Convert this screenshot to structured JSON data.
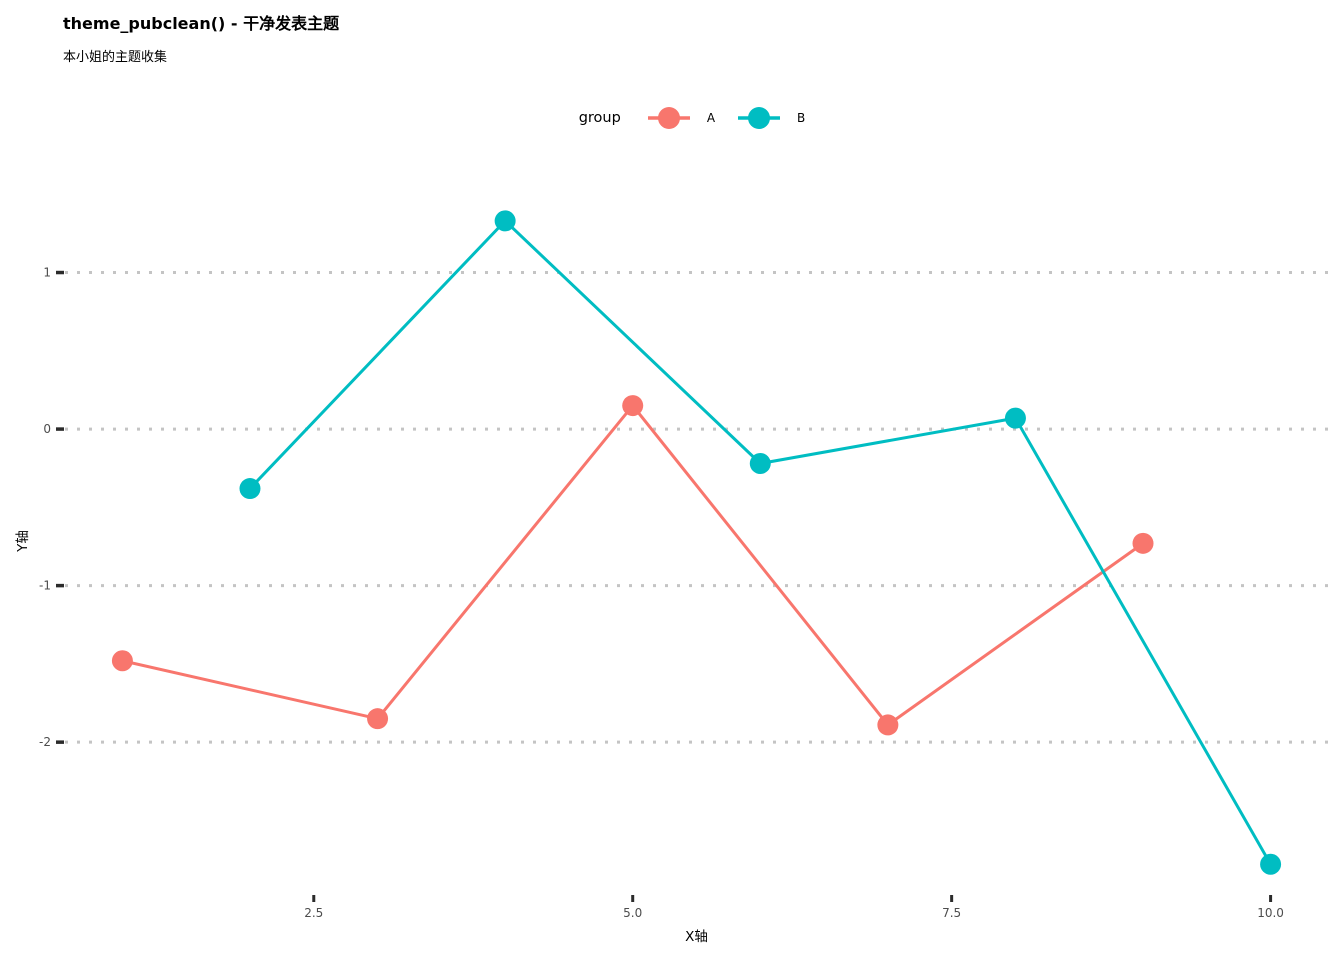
{
  "chart_data": {
    "type": "line",
    "title": "theme_pubclean() - 干净发表主题",
    "subtitle": "本小姐的主题收集",
    "xlabel": "X轴",
    "ylabel": "Y轴",
    "legend_title": "group",
    "legend_position": "top",
    "grid": "horizontal dotted major lines only, no vertical grid",
    "series": [
      {
        "name": "A",
        "color": "#F8766D",
        "points": [
          {
            "x": 1,
            "y": -1.48
          },
          {
            "x": 3,
            "y": -1.85
          },
          {
            "x": 5,
            "y": 0.15
          },
          {
            "x": 7,
            "y": -1.89
          },
          {
            "x": 9,
            "y": -0.73
          }
        ]
      },
      {
        "name": "B",
        "color": "#00BDC2",
        "points": [
          {
            "x": 2,
            "y": -0.38
          },
          {
            "x": 4,
            "y": 1.33
          },
          {
            "x": 6,
            "y": -0.22
          },
          {
            "x": 8,
            "y": 0.07
          },
          {
            "x": 10,
            "y": -2.78
          }
        ]
      }
    ],
    "x_ticks": [
      {
        "v": 2.5,
        "label": "2.5"
      },
      {
        "v": 5.0,
        "label": "5.0"
      },
      {
        "v": 7.5,
        "label": "7.5"
      },
      {
        "v": 10.0,
        "label": "10.0"
      }
    ],
    "y_ticks": [
      {
        "v": 1,
        "label": "1"
      },
      {
        "v": 0,
        "label": "0"
      },
      {
        "v": -1,
        "label": "-1"
      },
      {
        "v": -2,
        "label": "-2"
      }
    ],
    "xlim": [
      0.55,
      10.45
    ],
    "ylim": [
      -2.97,
      1.54
    ],
    "colors": {
      "grid_dot": "#C4C4C4",
      "tick_mark": "#2B2B2B",
      "tick_label": "#4D4D4D",
      "text": "#000000"
    }
  }
}
